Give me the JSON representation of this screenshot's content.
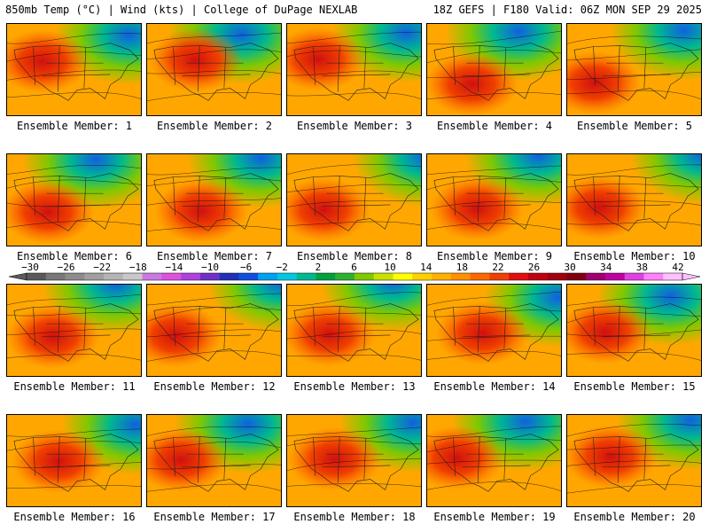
{
  "header": {
    "left": "850mb Temp (°C) | Wind (kts) | College of DuPage NEXLAB",
    "right": "18Z GEFS | F180 Valid: 06Z MON SEP 29 2025"
  },
  "member_label_prefix": "Ensemble Member: ",
  "members": [
    "1",
    "2",
    "3",
    "4",
    "5",
    "6",
    "7",
    "8",
    "9",
    "10",
    "11",
    "12",
    "13",
    "14",
    "15",
    "16",
    "17",
    "18",
    "19",
    "20"
  ],
  "colorbar": {
    "ticks": [
      "−30",
      "−26",
      "−22",
      "−18",
      "−14",
      "−10",
      "−6",
      "−2",
      "2",
      "6",
      "10",
      "14",
      "18",
      "22",
      "26",
      "30",
      "34",
      "38",
      "42"
    ],
    "colors": [
      "#5a5a5a",
      "#787878",
      "#8c8c8c",
      "#a0a0a0",
      "#b4b4b4",
      "#c8c8c8",
      "#c87ae0",
      "#e050e0",
      "#b040e0",
      "#7030c8",
      "#2030b8",
      "#1050e0",
      "#00a0f0",
      "#00c8e0",
      "#00b890",
      "#00a040",
      "#30b030",
      "#80c800",
      "#c8e000",
      "#ffff00",
      "#ffd000",
      "#ffb000",
      "#ff9000",
      "#ff6800",
      "#f04000",
      "#e01010",
      "#c00010",
      "#a00010",
      "#800010",
      "#a00070",
      "#c000a0",
      "#e040e0",
      "#ff80ff",
      "#ffc0ff"
    ]
  }
}
